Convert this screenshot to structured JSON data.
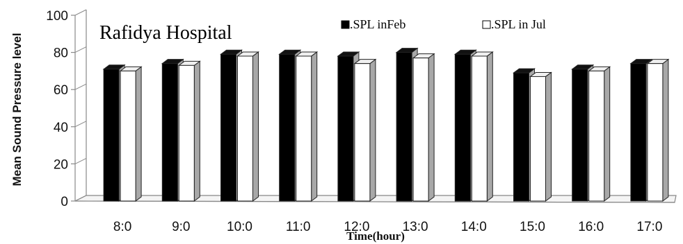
{
  "chart_data": {
    "type": "bar",
    "title": "Rafidya Hospital",
    "xlabel": "Time(hour)",
    "ylabel": "Mean Sound Pressure level",
    "ylim": [
      0,
      100
    ],
    "yticks": [
      0,
      20,
      40,
      60,
      80,
      100
    ],
    "categories": [
      "8:0",
      "9:0",
      "10:0",
      "11:0",
      "12:0",
      "13:0",
      "14:0",
      "15:0",
      "16:0",
      "17:0"
    ],
    "series": [
      {
        "name": ".SPL inFeb",
        "values": [
          71,
          74,
          79,
          79,
          78,
          80,
          79,
          69,
          71,
          74
        ]
      },
      {
        "name": ".SPL in Jul",
        "values": [
          70,
          73,
          78,
          78,
          74,
          77,
          78,
          67,
          70,
          74
        ]
      }
    ],
    "legend_position": "top-center",
    "grid": false,
    "colors": {
      "series_feb": "#000000",
      "series_jul": "#ffffff",
      "edge": "#222222",
      "side": "#a8a8a8",
      "axis": "#888888"
    }
  }
}
